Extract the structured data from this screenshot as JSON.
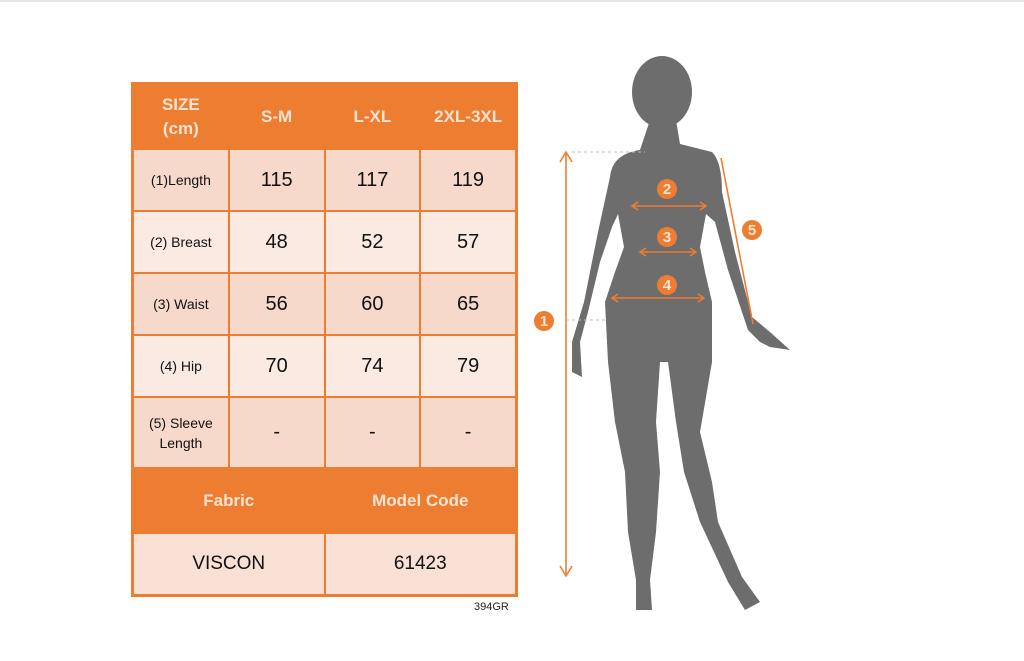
{
  "table": {
    "header": [
      "SIZE\n(cm)",
      "S-M",
      "L-XL",
      "2XL-3XL"
    ],
    "rows": [
      {
        "label": "(1)Length",
        "values": [
          "115",
          "117",
          "119"
        ]
      },
      {
        "label": "(2) Breast",
        "values": [
          "48",
          "52",
          "57"
        ]
      },
      {
        "label": "(3) Waist",
        "values": [
          "56",
          "60",
          "65"
        ]
      },
      {
        "label": "(4) Hip",
        "values": [
          "70",
          "74",
          "79"
        ]
      },
      {
        "label": "(5) Sleeve Length",
        "values": [
          "-",
          "-",
          "-"
        ]
      }
    ],
    "footer_header": [
      "Fabric",
      "Model Code"
    ],
    "footer_values": [
      "VISCON",
      "61423"
    ]
  },
  "product_code": "394GR",
  "figure": {
    "markers": [
      "1",
      "2",
      "3",
      "4",
      "5"
    ]
  },
  "colors": {
    "accent": "#ed7d31",
    "silhouette": "#6d6d6d"
  }
}
